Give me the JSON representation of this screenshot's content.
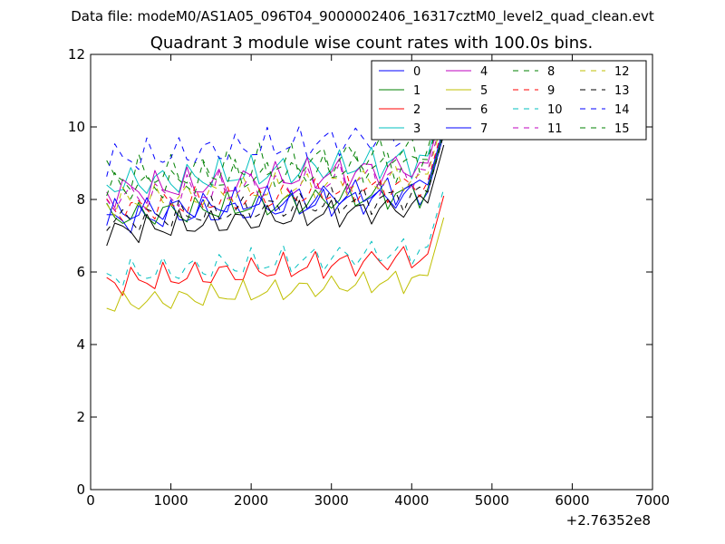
{
  "chart_data": {
    "type": "line",
    "suptitle": "Data file: modeM0/AS1A05_096T04_9000002406_16317cztM0_level2_quad_clean.evt",
    "title": "Quadrant 3 module wise count rates with 100.0s bins.",
    "xlabel": "",
    "ylabel": "",
    "x_offset_label": "+2.76352e8",
    "xlim": [
      0,
      7000
    ],
    "ylim": [
      0,
      12
    ],
    "x_ticks": [
      0,
      1000,
      2000,
      3000,
      4000,
      5000,
      6000,
      7000
    ],
    "x_tick_labels": [
      "0",
      "1000",
      "2000",
      "3000",
      "4000",
      "5000",
      "6000",
      "7000"
    ],
    "y_ticks": [
      0,
      2,
      4,
      6,
      8,
      10,
      12
    ],
    "y_tick_labels": [
      "0",
      "2",
      "4",
      "6",
      "8",
      "10",
      "12"
    ],
    "legend_position": "top-right",
    "x_grid": {
      "start": 200,
      "step": 100,
      "count": 43
    },
    "series": [
      {
        "name": "0",
        "color": "#0000ff",
        "dash": "solid",
        "base": 7.4,
        "amp": 0.3,
        "ph": 0.3
      },
      {
        "name": "1",
        "color": "#008000",
        "dash": "solid",
        "base": 7.5,
        "amp": 0.3,
        "ph": 1.1
      },
      {
        "name": "2",
        "color": "#ff0000",
        "dash": "solid",
        "base": 5.7,
        "amp": 0.3,
        "ph": 2.0
      },
      {
        "name": "3",
        "color": "#00bfbf",
        "dash": "solid",
        "base": 8.4,
        "amp": 0.35,
        "ph": 2.7
      },
      {
        "name": "4",
        "color": "#bf00bf",
        "dash": "solid",
        "base": 8.2,
        "amp": 0.35,
        "ph": 3.4
      },
      {
        "name": "5",
        "color": "#bfbf00",
        "dash": "solid",
        "base": 5.1,
        "amp": 0.25,
        "ph": 4.2
      },
      {
        "name": "6",
        "color": "#000000",
        "dash": "solid",
        "base": 7.1,
        "amp": 0.3,
        "ph": 5.0
      },
      {
        "name": "7",
        "color": "#0000ff",
        "dash": "solid",
        "base": 7.6,
        "amp": 0.3,
        "ph": 5.7
      },
      {
        "name": "8",
        "color": "#008000",
        "dash": "dashed",
        "base": 8.6,
        "amp": 0.4,
        "ph": 0.7
      },
      {
        "name": "9",
        "color": "#ff0000",
        "dash": "dashed",
        "base": 7.7,
        "amp": 0.3,
        "ph": 1.5
      },
      {
        "name": "10",
        "color": "#00bfbf",
        "dash": "dashed",
        "base": 5.9,
        "amp": 0.3,
        "ph": 2.3
      },
      {
        "name": "11",
        "color": "#bf00bf",
        "dash": "dashed",
        "base": 8.0,
        "amp": 0.35,
        "ph": 3.0
      },
      {
        "name": "12",
        "color": "#bfbf00",
        "dash": "dashed",
        "base": 7.9,
        "amp": 0.3,
        "ph": 3.8
      },
      {
        "name": "13",
        "color": "#000000",
        "dash": "dashed",
        "base": 7.4,
        "amp": 0.3,
        "ph": 4.6
      },
      {
        "name": "14",
        "color": "#0000ff",
        "dash": "dashed",
        "base": 9.1,
        "amp": 0.35,
        "ph": 5.3
      },
      {
        "name": "15",
        "color": "#008000",
        "dash": "dashed",
        "base": 8.3,
        "amp": 0.35,
        "ph": 6.0
      }
    ]
  }
}
